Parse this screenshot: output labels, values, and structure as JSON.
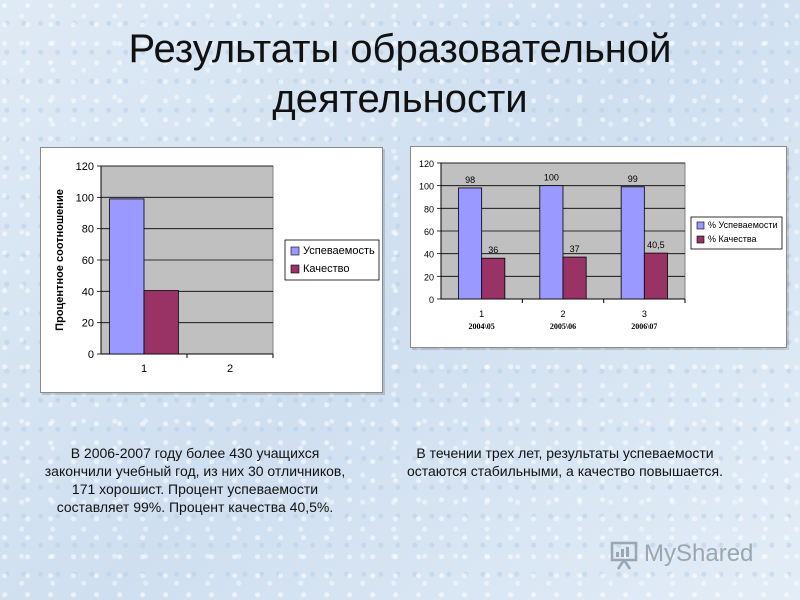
{
  "title": "Результаты образовательной деятельности",
  "captions": {
    "left": "В 2006-2007 году более 430 учащихся закончили учебный год, из них 30 отличников, 171 хорошист. Процент успеваемости составляет 99%. Процент качества 40,5%.",
    "right": "В течении трех лет, результаты успеваемости остаются стабильными, а качество повышается."
  },
  "logo": {
    "text": "MyShared",
    "icon": "presentation-board-icon"
  },
  "colors": {
    "series1": "#9999ff",
    "series2": "#993366",
    "plot_bg": "#c0c0c0"
  },
  "chart_data": [
    {
      "type": "bar",
      "categories": [
        "1",
        "2"
      ],
      "series": [
        {
          "name": "Успеваемость",
          "values": [
            99,
            null
          ]
        },
        {
          "name": "Качество",
          "values": [
            40.5,
            null
          ]
        }
      ],
      "ylabel": "Процентное соотношение",
      "ylim": [
        0,
        120
      ],
      "yticks": [
        "0",
        "20",
        "40",
        "60",
        "80",
        "100",
        "120"
      ],
      "grid": true,
      "legend": "right"
    },
    {
      "type": "bar",
      "categories": [
        "1",
        "2",
        "3"
      ],
      "category_sublabels": [
        "2004\\05",
        "2005\\06",
        "2006\\07"
      ],
      "series": [
        {
          "name": "% Успеваемости",
          "values": [
            98,
            100,
            99
          ],
          "labels": [
            "98",
            "100",
            "99"
          ]
        },
        {
          "name": "% Качества",
          "values": [
            36,
            37,
            40.5
          ],
          "labels": [
            "36",
            "37",
            "40,5"
          ]
        }
      ],
      "ylim": [
        0,
        120
      ],
      "yticks": [
        "0",
        "20",
        "40",
        "60",
        "80",
        "100",
        "120"
      ],
      "grid": true,
      "legend": "right"
    }
  ]
}
